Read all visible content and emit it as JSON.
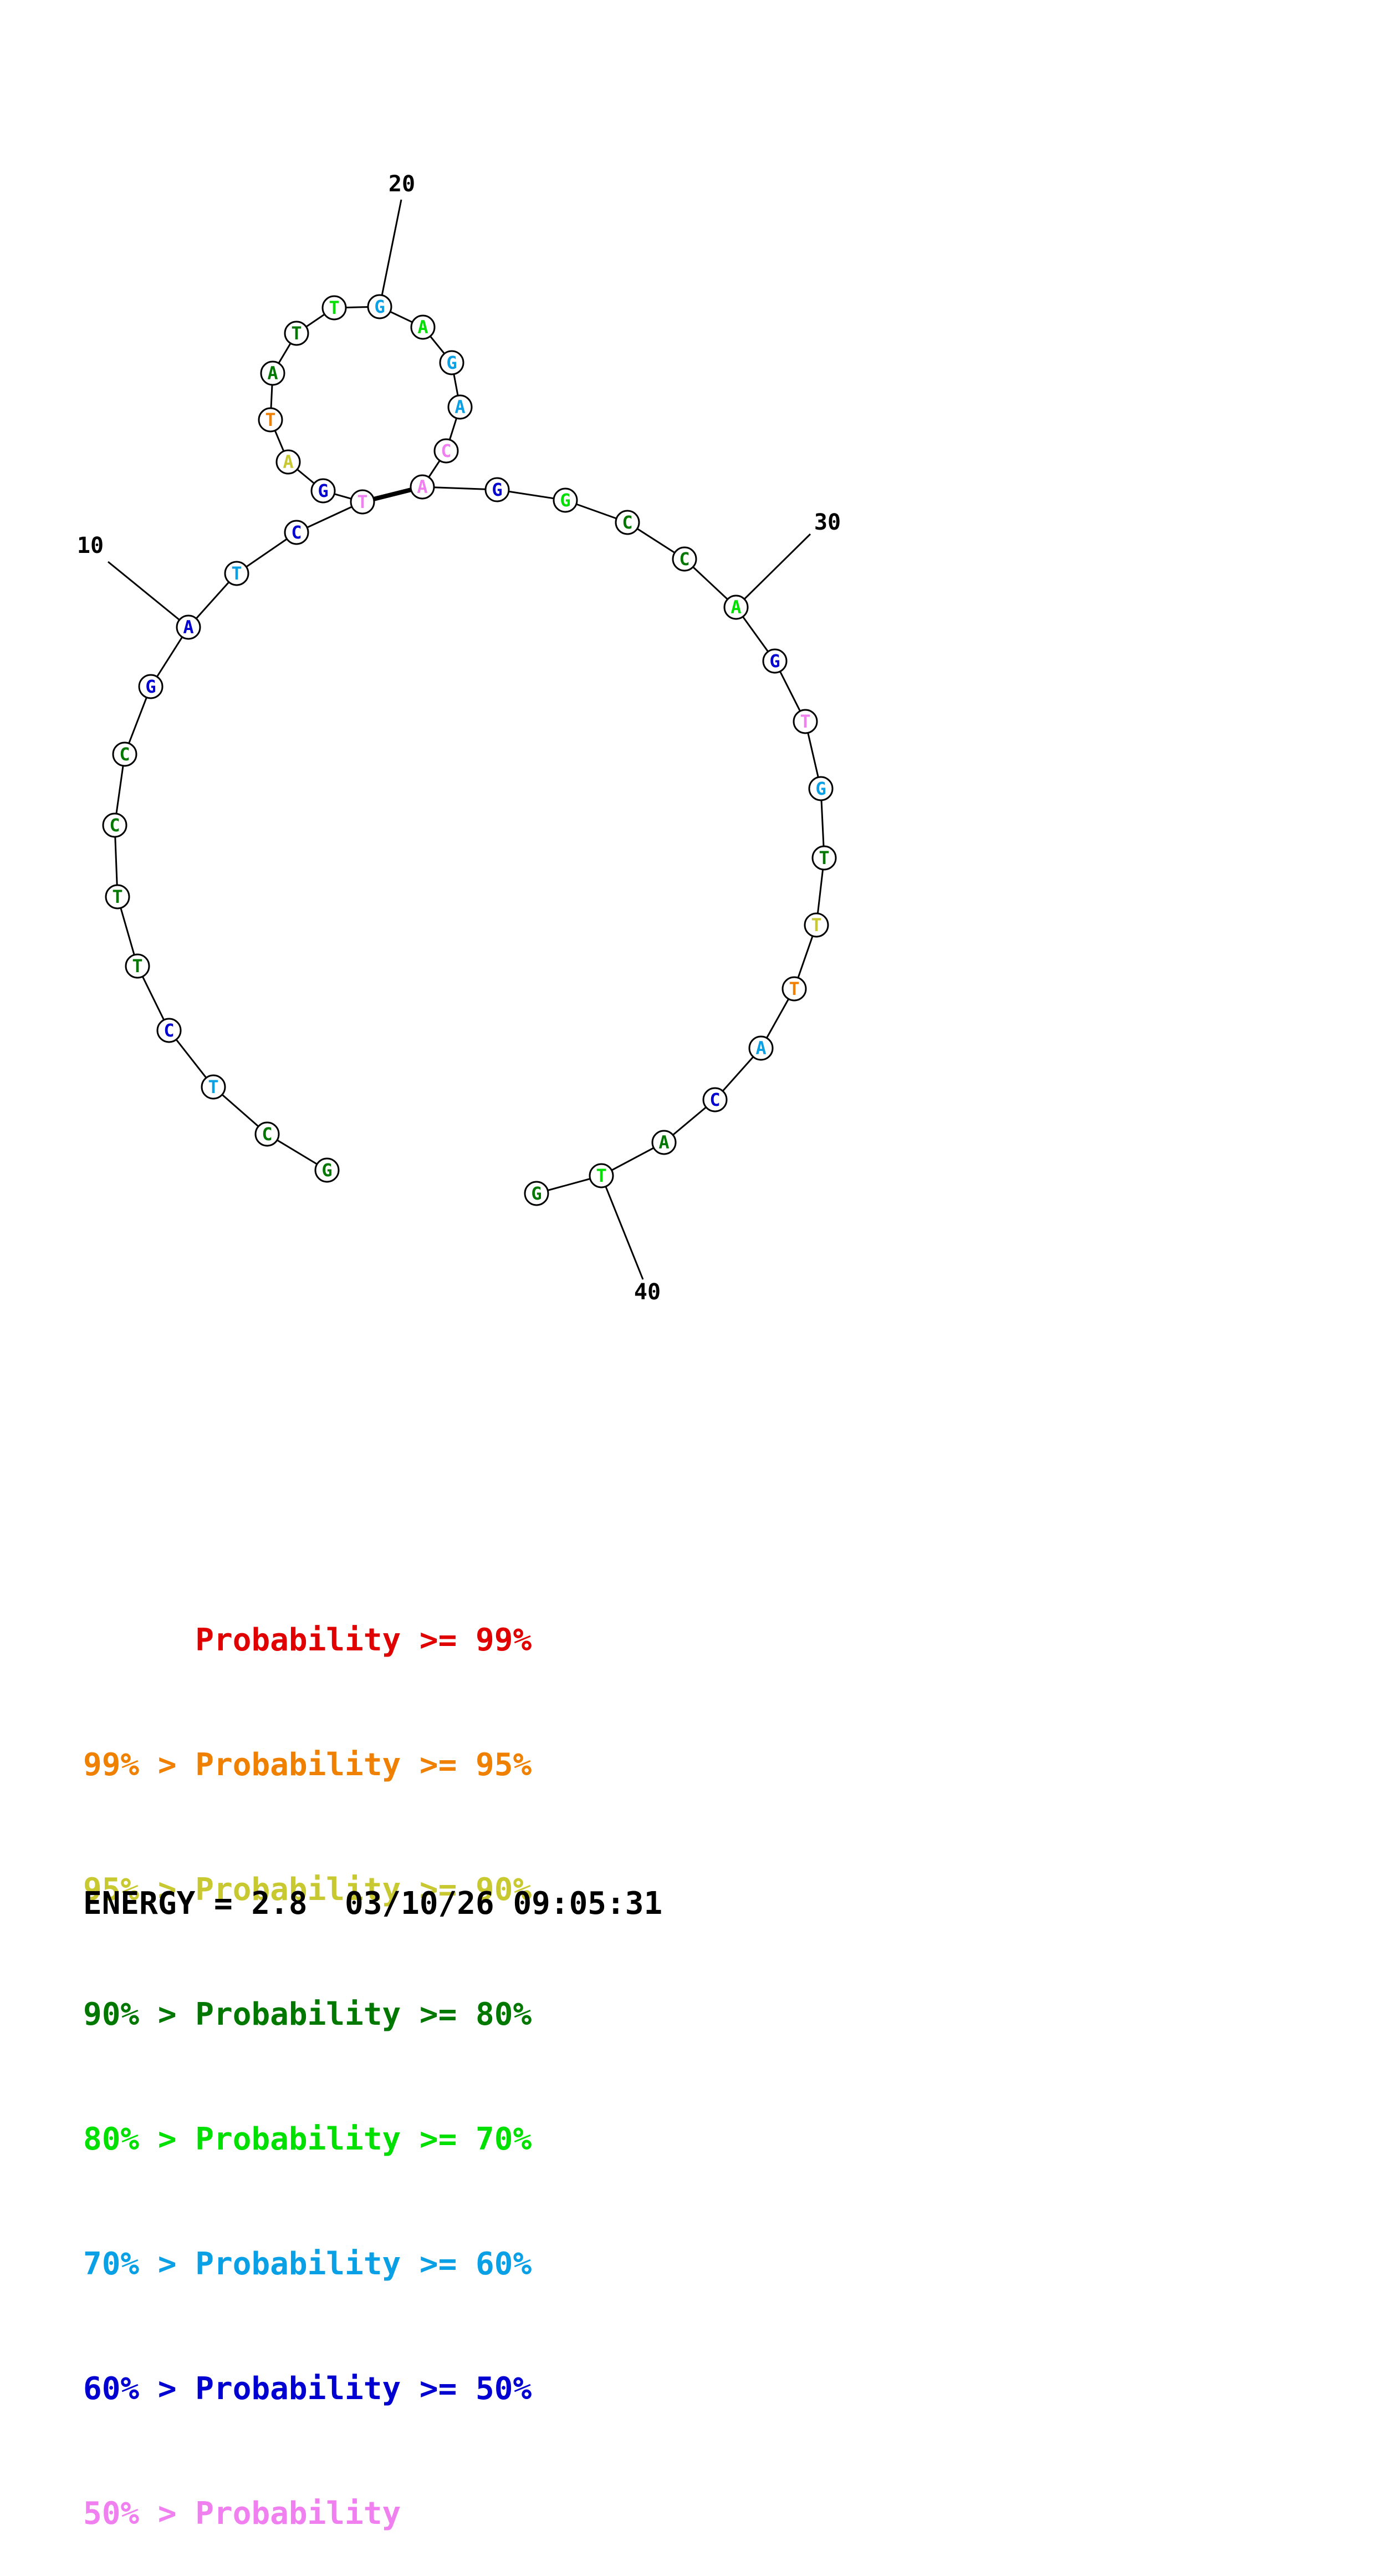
{
  "colors": {
    "red": "#e00000",
    "orange": "#f08000",
    "yellow": "#c8c830",
    "darkgreen": "#007800",
    "green": "#00e000",
    "cyan": "#0aa0e6",
    "blue": "#0000d0",
    "pink": "#f080f0"
  },
  "structure": {
    "nucleotides": [
      {
        "base": "G",
        "color": "darkgreen"
      },
      {
        "base": "C",
        "color": "darkgreen"
      },
      {
        "base": "T",
        "color": "cyan"
      },
      {
        "base": "C",
        "color": "blue"
      },
      {
        "base": "T",
        "color": "darkgreen"
      },
      {
        "base": "T",
        "color": "darkgreen"
      },
      {
        "base": "C",
        "color": "darkgreen"
      },
      {
        "base": "C",
        "color": "darkgreen"
      },
      {
        "base": "G",
        "color": "blue"
      },
      {
        "base": "A",
        "color": "blue"
      },
      {
        "base": "T",
        "color": "cyan"
      },
      {
        "base": "C",
        "color": "blue"
      },
      {
        "base": "T",
        "color": "pink"
      },
      {
        "base": "G",
        "color": "blue"
      },
      {
        "base": "A",
        "color": "yellow"
      },
      {
        "base": "T",
        "color": "orange"
      },
      {
        "base": "A",
        "color": "darkgreen"
      },
      {
        "base": "T",
        "color": "darkgreen"
      },
      {
        "base": "T",
        "color": "green"
      },
      {
        "base": "G",
        "color": "cyan"
      },
      {
        "base": "A",
        "color": "green"
      },
      {
        "base": "G",
        "color": "cyan"
      },
      {
        "base": "A",
        "color": "cyan"
      },
      {
        "base": "C",
        "color": "pink"
      },
      {
        "base": "A",
        "color": "pink"
      },
      {
        "base": "G",
        "color": "blue"
      },
      {
        "base": "G",
        "color": "green"
      },
      {
        "base": "C",
        "color": "darkgreen"
      },
      {
        "base": "C",
        "color": "darkgreen"
      },
      {
        "base": "A",
        "color": "green"
      },
      {
        "base": "G",
        "color": "blue"
      },
      {
        "base": "T",
        "color": "pink"
      },
      {
        "base": "G",
        "color": "cyan"
      },
      {
        "base": "T",
        "color": "darkgreen"
      },
      {
        "base": "T",
        "color": "yellow"
      },
      {
        "base": "T",
        "color": "orange"
      },
      {
        "base": "A",
        "color": "cyan"
      },
      {
        "base": "C",
        "color": "blue"
      },
      {
        "base": "A",
        "color": "darkgreen"
      },
      {
        "base": "T",
        "color": "green"
      },
      {
        "base": "G",
        "color": "darkgreen"
      }
    ],
    "base_pairs": [
      [
        13,
        25
      ]
    ],
    "position_labels": [
      {
        "nt": 10,
        "text": "10"
      },
      {
        "nt": 20,
        "text": "20"
      },
      {
        "nt": 30,
        "text": "30"
      },
      {
        "nt": 40,
        "text": "40"
      }
    ]
  },
  "legend": [
    {
      "prefix": "",
      "text": "Probability >= 99%",
      "color": "red"
    },
    {
      "prefix": "99% > ",
      "text": "Probability >= 95%",
      "color": "orange"
    },
    {
      "prefix": "95% > ",
      "text": "Probability >= 90%",
      "color": "yellow"
    },
    {
      "prefix": "90% > ",
      "text": "Probability >= 80%",
      "color": "darkgreen"
    },
    {
      "prefix": "80% > ",
      "text": "Probability >= 70%",
      "color": "green"
    },
    {
      "prefix": "70% > ",
      "text": "Probability >= 60%",
      "color": "cyan"
    },
    {
      "prefix": "60% > ",
      "text": "Probability >= 50%",
      "color": "blue"
    },
    {
      "prefix": "50% > ",
      "text": "Probability",
      "color": "pink"
    }
  ],
  "energy": {
    "text": "ENERGY = 2.8  03/10/26 09:05:31"
  }
}
